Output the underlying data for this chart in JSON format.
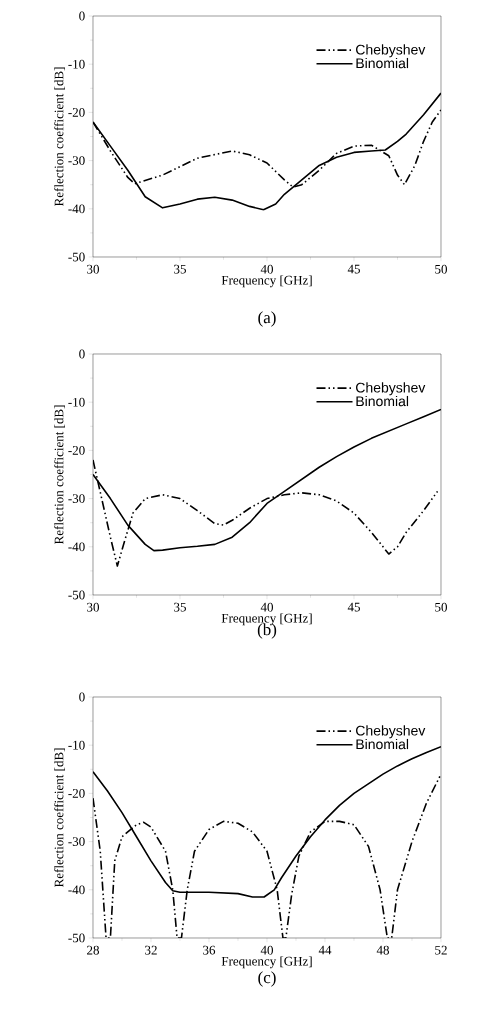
{
  "chart_data": [
    {
      "type": "line",
      "title": "(a)",
      "xlabel": "Frequency [GHz]",
      "ylabel": "Reflection coefficient [dB]",
      "xlim": [
        30,
        50
      ],
      "ylim": [
        -50,
        0
      ],
      "xticks": [
        30,
        35,
        40,
        45,
        50
      ],
      "yticks": [
        -50,
        -40,
        -30,
        -20,
        -10,
        0
      ],
      "legend": "top right",
      "grid": false,
      "series": [
        {
          "name": "Chebyshev",
          "color": "#000000",
          "line_style": "dashed",
          "x": [
            30,
            31,
            32,
            32.4,
            34,
            36,
            38,
            39,
            40,
            41,
            41.5,
            42,
            43,
            44,
            45,
            46,
            47,
            47.5,
            47.9,
            48.5,
            49,
            49.5,
            50
          ],
          "values": [
            -22,
            -28,
            -33.5,
            -34.8,
            -33,
            -29.5,
            -28,
            -28.8,
            -30.5,
            -34,
            -35.5,
            -35,
            -32,
            -28.5,
            -27,
            -26.8,
            -29,
            -33,
            -35,
            -31,
            -26,
            -22,
            -19.5
          ]
        },
        {
          "name": "Binomial",
          "color": "#000000",
          "line_style": "solid",
          "x": [
            30,
            31,
            32,
            33,
            34,
            35,
            36,
            37,
            38,
            39,
            39.8,
            40.5,
            41,
            42,
            43,
            44,
            45,
            46,
            46.8,
            47.5,
            48,
            49,
            50
          ],
          "values": [
            -22,
            -27,
            -32,
            -37.5,
            -39.8,
            -39,
            -38,
            -37.6,
            -38.2,
            -39.5,
            -40.2,
            -39,
            -37,
            -34,
            -31,
            -29.3,
            -28.3,
            -28,
            -27.8,
            -26,
            -24.5,
            -20.5,
            -16
          ]
        }
      ]
    },
    {
      "type": "line",
      "title": "(b)",
      "xlabel": "Frequency [GHz]",
      "ylabel": "Reflection coefficient [dB]",
      "xlim": [
        30,
        50
      ],
      "ylim": [
        -50,
        0
      ],
      "xticks": [
        30,
        35,
        40,
        45,
        50
      ],
      "yticks": [
        -50,
        -40,
        -30,
        -20,
        -10,
        0
      ],
      "legend": "top right",
      "grid": false,
      "series": [
        {
          "name": "Chebyshev",
          "color": "#000000",
          "line_style": "dashed",
          "x": [
            30,
            30.5,
            31,
            31.4,
            31.8,
            32.3,
            33,
            34,
            35,
            36,
            37,
            37.5,
            38,
            39,
            40,
            41,
            42,
            43,
            44,
            45,
            46,
            47,
            47.5,
            48,
            49,
            49.8
          ],
          "values": [
            -22,
            -30,
            -38,
            -44,
            -39,
            -33,
            -30,
            -29.2,
            -30,
            -32.5,
            -35.2,
            -35.5,
            -34.5,
            -32,
            -30,
            -29.2,
            -28.8,
            -29.2,
            -30.5,
            -33,
            -37,
            -41.5,
            -40,
            -37,
            -32.5,
            -28.5
          ]
        },
        {
          "name": "Binomial",
          "color": "#000000",
          "line_style": "solid",
          "x": [
            30,
            31,
            32,
            33,
            33.5,
            34,
            35,
            36,
            37,
            38,
            39,
            40,
            41,
            42,
            43,
            44,
            45,
            46,
            47,
            48,
            49,
            50
          ],
          "values": [
            -25,
            -30,
            -35.5,
            -39.5,
            -40.8,
            -40.7,
            -40.2,
            -39.9,
            -39.5,
            -38,
            -35,
            -31,
            -28.5,
            -26,
            -23.5,
            -21.3,
            -19.3,
            -17.5,
            -16,
            -14.5,
            -13,
            -11.5
          ]
        }
      ]
    },
    {
      "type": "line",
      "title": "(c)",
      "xlabel": "Frequency [GHz]",
      "ylabel": "Reflection coefficient [dB]",
      "xlim": [
        28,
        52
      ],
      "ylim": [
        -50,
        0
      ],
      "xticks": [
        28,
        32,
        36,
        40,
        44,
        48,
        52
      ],
      "yticks": [
        -50,
        -40,
        -30,
        -20,
        -10,
        0
      ],
      "legend": "top right",
      "grid": false,
      "series": [
        {
          "name": "Chebyshev",
          "color": "#000000",
          "line_style": "dashed",
          "x": [
            28,
            28.5,
            28.9,
            29.2,
            29.5,
            30,
            31,
            31.5,
            32,
            33,
            33.5,
            33.8,
            34.1,
            34.5,
            35,
            36,
            37,
            38,
            39,
            40,
            40.7,
            41.1,
            41.3,
            41.7,
            42.2,
            43,
            44,
            45,
            46,
            47,
            47.8,
            48.3,
            48.6,
            49,
            50,
            51,
            52
          ],
          "values": [
            -21,
            -32,
            -50,
            -50,
            -34,
            -29,
            -26.5,
            -26,
            -27,
            -32,
            -40,
            -50,
            -50,
            -40,
            -32,
            -27.5,
            -25.8,
            -26.2,
            -28,
            -32,
            -40,
            -50,
            -50,
            -41,
            -33,
            -28,
            -25.8,
            -25.8,
            -26.5,
            -31,
            -40,
            -50,
            -50,
            -40,
            -30,
            -22,
            -16
          ]
        },
        {
          "name": "Binomial",
          "color": "#000000",
          "line_style": "solid",
          "x": [
            28,
            29,
            30,
            31,
            32,
            33,
            33.5,
            34,
            36,
            38,
            39,
            39.8,
            40.5,
            41,
            42,
            43,
            44,
            45,
            46,
            47,
            48,
            49,
            50,
            51,
            52
          ],
          "values": [
            -15.5,
            -19.5,
            -24,
            -29,
            -34,
            -38.5,
            -40.2,
            -40.5,
            -40.5,
            -40.8,
            -41.5,
            -41.5,
            -40,
            -37.5,
            -33,
            -29,
            -25.5,
            -22.5,
            -20,
            -18,
            -16,
            -14.3,
            -12.8,
            -11.5,
            -10.3
          ]
        }
      ]
    }
  ]
}
